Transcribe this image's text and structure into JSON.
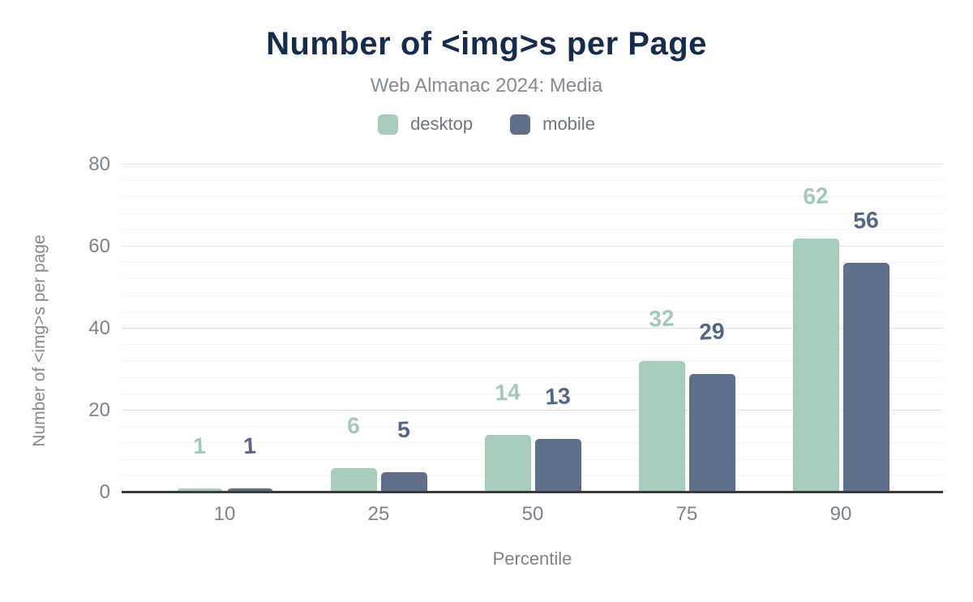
{
  "header": {
    "title": "Number of <img>s per Page",
    "subtitle": "Web Almanac 2024: Media"
  },
  "legend": {
    "items": [
      {
        "label": "desktop",
        "color": "#a8ccbb"
      },
      {
        "label": "mobile",
        "color": "#5f6e8a"
      }
    ]
  },
  "chart_data": {
    "type": "bar",
    "title": "Number of <img>s per Page",
    "subtitle": "Web Almanac 2024: Media",
    "categories": [
      "10",
      "25",
      "50",
      "75",
      "90"
    ],
    "series": [
      {
        "name": "desktop",
        "color": "#a8ccbb",
        "label_color": "#a5c9b8",
        "values": [
          1,
          6,
          14,
          32,
          62
        ]
      },
      {
        "name": "mobile",
        "color": "#5f6e8a",
        "label_color": "#556786",
        "values": [
          1,
          5,
          13,
          29,
          56
        ]
      }
    ],
    "xlabel": "Percentile",
    "ylabel": "Number of <img>s per page",
    "ylim": [
      0,
      80
    ],
    "y_major_ticks": [
      0,
      20,
      40,
      60,
      80
    ],
    "y_minor_step": 4,
    "grid": true,
    "legend_position": "top",
    "data_labels": true
  },
  "colors": {
    "title_text": "#172b4c",
    "subtitle_text": "#858b90",
    "axis_text": "#7d8388",
    "baseline": "#3b3b3b",
    "grid_major": "#e3e3e3",
    "grid_minor": "#f4f4f4",
    "background": "#ffffff"
  }
}
